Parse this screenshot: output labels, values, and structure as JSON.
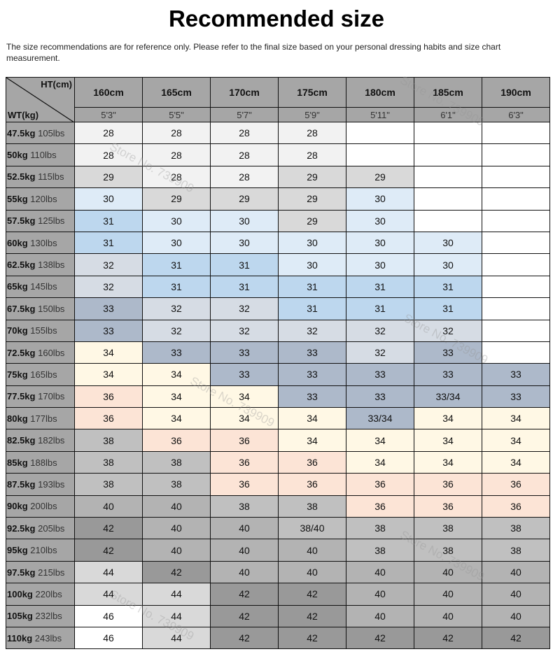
{
  "title": "Recommended size",
  "note": "The size recommendations are for reference only. Please refer to the final size based on your personal dressing habits and size chart measurement.",
  "corner": {
    "ht": "HT(cm)",
    "wt": "WT(kg)"
  },
  "heights_cm": [
    "160cm",
    "165cm",
    "170cm",
    "175cm",
    "180cm",
    "185cm",
    "190cm"
  ],
  "heights_ft": [
    "5'3\"",
    "5'5\"",
    "5'7\"",
    "5'9\"",
    "5'11\"",
    "6'1\"",
    "6'3\""
  ],
  "watermark": "Store No. 739909",
  "rows": [
    {
      "kg": "47.5kg",
      "lbs": "105lbs",
      "sizes": [
        "28",
        "28",
        "28",
        "28",
        "",
        "",
        ""
      ]
    },
    {
      "kg": "50kg",
      "lbs": "110lbs",
      "sizes": [
        "28",
        "28",
        "28",
        "28",
        "",
        "",
        ""
      ]
    },
    {
      "kg": "52.5kg",
      "lbs": "115lbs",
      "sizes": [
        "29",
        "28",
        "28",
        "29",
        "29",
        "",
        ""
      ]
    },
    {
      "kg": "55kg",
      "lbs": "120lbs",
      "sizes": [
        "30",
        "29",
        "29",
        "29",
        "30",
        "",
        ""
      ]
    },
    {
      "kg": "57.5kg",
      "lbs": "125lbs",
      "sizes": [
        "31",
        "30",
        "30",
        "29",
        "30",
        "",
        ""
      ]
    },
    {
      "kg": "60kg",
      "lbs": "130lbs",
      "sizes": [
        "31",
        "30",
        "30",
        "30",
        "30",
        "30",
        ""
      ]
    },
    {
      "kg": "62.5kg",
      "lbs": "138lbs",
      "sizes": [
        "32",
        "31",
        "31",
        "30",
        "30",
        "30",
        ""
      ]
    },
    {
      "kg": "65kg",
      "lbs": "145lbs",
      "sizes": [
        "32",
        "31",
        "31",
        "31",
        "31",
        "31",
        ""
      ]
    },
    {
      "kg": "67.5kg",
      "lbs": "150lbs",
      "sizes": [
        "33",
        "32",
        "32",
        "31",
        "31",
        "31",
        ""
      ]
    },
    {
      "kg": "70kg",
      "lbs": "155lbs",
      "sizes": [
        "33",
        "32",
        "32",
        "32",
        "32",
        "32",
        ""
      ]
    },
    {
      "kg": "72.5kg",
      "lbs": "160lbs",
      "sizes": [
        "34",
        "33",
        "33",
        "33",
        "32",
        "33",
        ""
      ]
    },
    {
      "kg": "75kg",
      "lbs": "165lbs",
      "sizes": [
        "34",
        "34",
        "33",
        "33",
        "33",
        "33",
        "33"
      ]
    },
    {
      "kg": "77.5kg",
      "lbs": "170lbs",
      "sizes": [
        "36",
        "34",
        "34",
        "33",
        "33",
        "33/34",
        "33"
      ]
    },
    {
      "kg": "80kg",
      "lbs": "177lbs",
      "sizes": [
        "36",
        "34",
        "34",
        "34",
        "33/34",
        "34",
        "34"
      ]
    },
    {
      "kg": "82.5kg",
      "lbs": "182lbs",
      "sizes": [
        "38",
        "36",
        "36",
        "34",
        "34",
        "34",
        "34"
      ]
    },
    {
      "kg": "85kg",
      "lbs": "188lbs",
      "sizes": [
        "38",
        "38",
        "36",
        "36",
        "34",
        "34",
        "34"
      ]
    },
    {
      "kg": "87.5kg",
      "lbs": "193lbs",
      "sizes": [
        "38",
        "38",
        "36",
        "36",
        "36",
        "36",
        "36"
      ]
    },
    {
      "kg": "90kg",
      "lbs": "200lbs",
      "sizes": [
        "40",
        "40",
        "38",
        "38",
        "36",
        "36",
        "36"
      ]
    },
    {
      "kg": "92.5kg",
      "lbs": "205lbs",
      "sizes": [
        "42",
        "40",
        "40",
        "38/40",
        "38",
        "38",
        "38"
      ]
    },
    {
      "kg": "95kg",
      "lbs": "210lbs",
      "sizes": [
        "42",
        "40",
        "40",
        "40",
        "38",
        "38",
        "38"
      ]
    },
    {
      "kg": "97.5kg",
      "lbs": "215lbs",
      "sizes": [
        "44",
        "42",
        "40",
        "40",
        "40",
        "40",
        "40"
      ]
    },
    {
      "kg": "100kg",
      "lbs": "220lbs",
      "sizes": [
        "44",
        "44",
        "42",
        "42",
        "40",
        "40",
        "40"
      ]
    },
    {
      "kg": "105kg",
      "lbs": "232lbs",
      "sizes": [
        "46",
        "44",
        "42",
        "42",
        "40",
        "40",
        "40"
      ]
    },
    {
      "kg": "110kg",
      "lbs": "243lbs",
      "sizes": [
        "46",
        "44",
        "42",
        "42",
        "42",
        "42",
        "42"
      ]
    }
  ],
  "size_colors": {
    "": "#ffffff",
    "28": "#f2f2f2",
    "29": "#d9d9d9",
    "30": "#deebf7",
    "31": "#bdd7ee",
    "32": "#d6dce4",
    "33": "#adb9ca",
    "33/34": "#adb9ca",
    "34": "#fff8e5",
    "36": "#fce4d6",
    "38": "#c0c0c0",
    "38/40": "#bfbfbf",
    "40": "#b3b3b3",
    "42": "#999999",
    "44": "#d9d9d9",
    "46": "#ffffff"
  }
}
